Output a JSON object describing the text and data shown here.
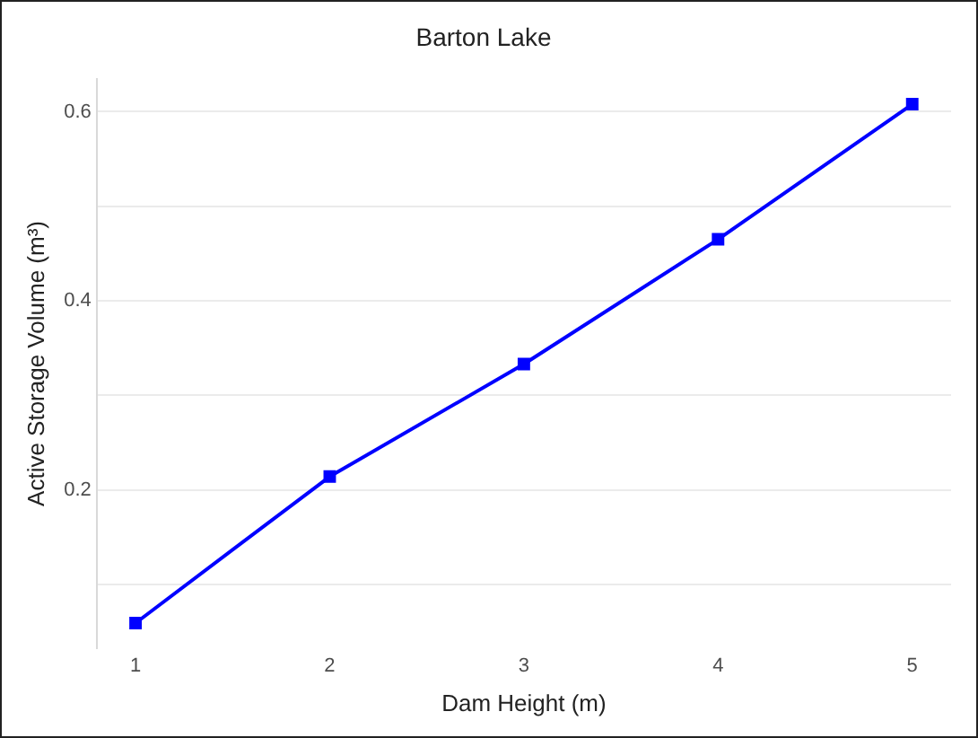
{
  "chart_data": {
    "type": "line",
    "title": "Barton Lake",
    "xlabel": "Dam Height (m)",
    "ylabel": "Active Storage Volume (m³)",
    "x": [
      1,
      2,
      3,
      4,
      5
    ],
    "series": [
      {
        "color": "#0000ff",
        "values": [
          0.059,
          0.214,
          0.333,
          0.465,
          0.608
        ]
      }
    ],
    "xlim": [
      0.8,
      5.2
    ],
    "xticks": [
      1,
      2,
      3,
      4,
      5
    ],
    "ylim": [
      0.032,
      0.635
    ],
    "yticks": [
      {
        "value": 0.1,
        "label": null
      },
      0.2,
      {
        "value": 0.3,
        "label": null
      },
      0.4,
      {
        "value": 0.5,
        "label": null
      },
      0.6
    ],
    "grid": "y",
    "legend": false,
    "marker": "square",
    "line_style": "solid"
  }
}
